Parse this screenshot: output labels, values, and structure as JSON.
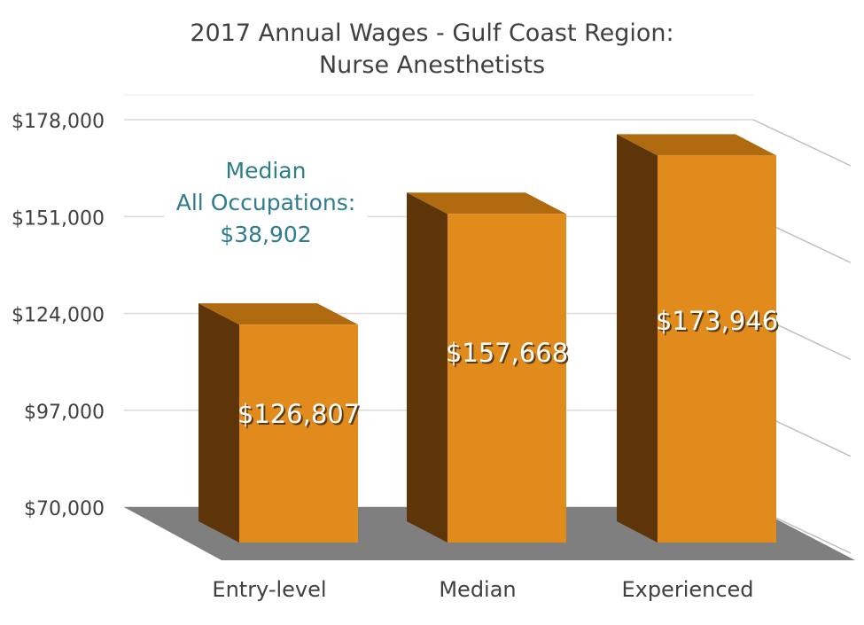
{
  "chart_data": {
    "type": "bar",
    "title": [
      "2017 Annual Wages - Gulf Coast Region:",
      "Nurse Anesthetists"
    ],
    "categories": [
      "Entry-level",
      "Median",
      "Experienced"
    ],
    "values": [
      126807,
      157668,
      173946
    ],
    "data_labels": [
      "$126,807",
      "$157,668",
      "$173,946"
    ],
    "y_ticks": [
      70000,
      97000,
      124000,
      151000,
      178000
    ],
    "y_tick_labels": [
      "$70,000",
      "$97,000",
      "$124,000",
      "$151,000",
      "$178,000"
    ],
    "ylim": [
      70000,
      178000
    ],
    "grid": true,
    "legend": "none",
    "annotation": [
      "Median",
      "All Occupations:",
      "$38,902"
    ],
    "colors": {
      "bar_front": "#e08b1c",
      "bar_side": "#5e3508",
      "bar_top": "#b06a10",
      "floor": "#7f7f7f",
      "annotation": "#2e7d8c",
      "text": "#404040",
      "grid": "#d9d9d9"
    }
  }
}
